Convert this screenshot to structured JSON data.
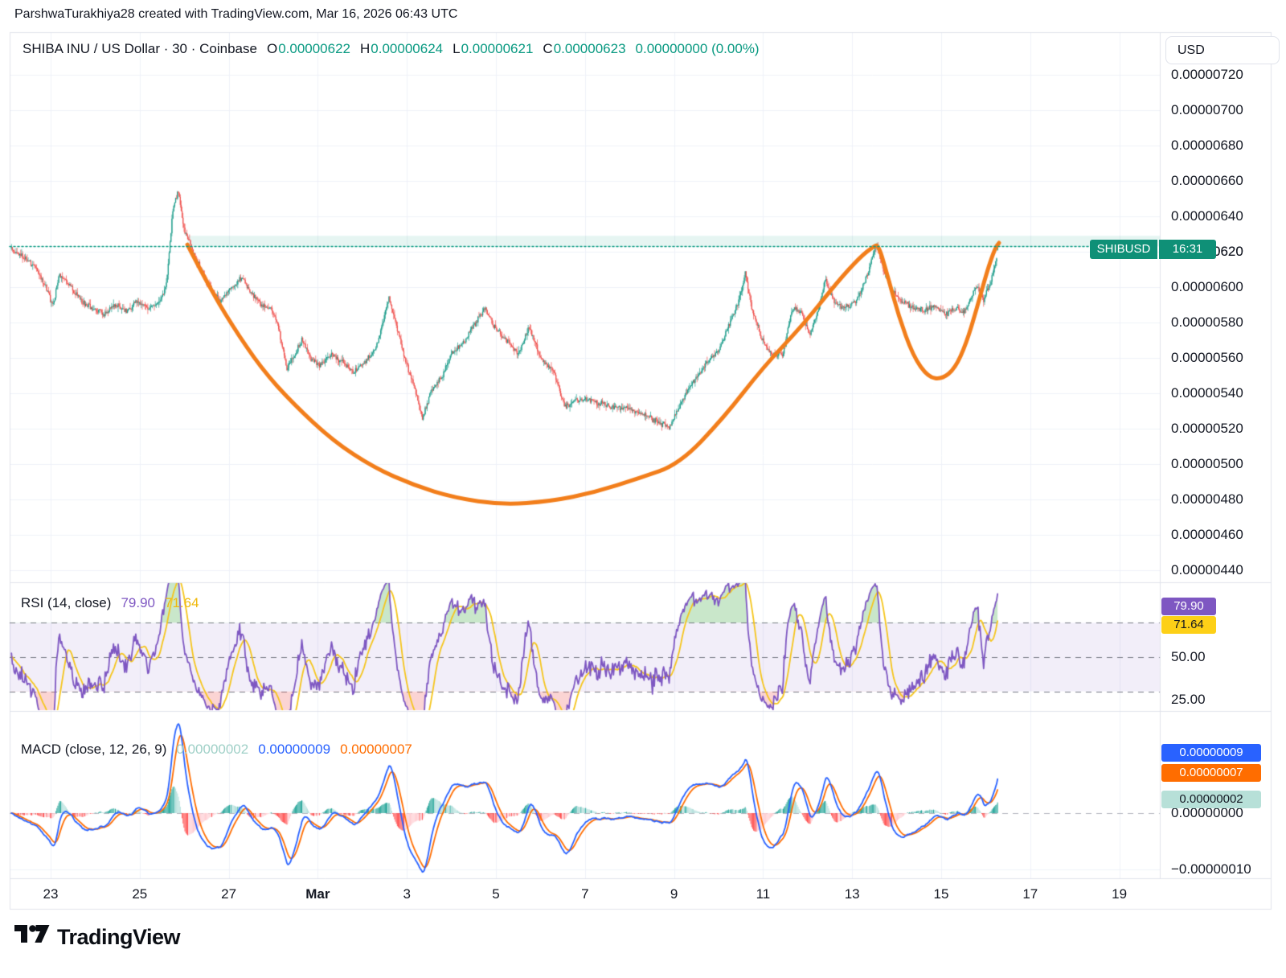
{
  "ui": {
    "header": "ParshwaTurakhiya28 created with TradingView.com, Mar 16, 2026 06:43 UTC",
    "currency_button": "USD",
    "logo_text": "TradingView",
    "price_flag": {
      "symbol": "SHIBUSD",
      "countdown": "16:31",
      "price": "0.00000620"
    }
  },
  "chart_data": [
    {
      "type": "candlestick",
      "pane": "price",
      "title": "SHIBA INU / US Dollar · 30 · Coinbase",
      "legend": {
        "o_label": "O",
        "o": "0.00000622",
        "h_label": "H",
        "h": "0.00000624",
        "l_label": "L",
        "l": "0.00000621",
        "c_label": "C",
        "c": "0.00000623",
        "change": "0.00000000 (0.00%)"
      },
      "y_ticks": [
        {
          "label": "0.00000720",
          "v": 720
        },
        {
          "label": "0.00000700",
          "v": 700
        },
        {
          "label": "0.00000680",
          "v": 680
        },
        {
          "label": "0.00000660",
          "v": 660
        },
        {
          "label": "0.00000640",
          "v": 640
        },
        {
          "label": "0.00000620",
          "v": 620
        },
        {
          "label": "0.00000600",
          "v": 600
        },
        {
          "label": "0.00000580",
          "v": 580
        },
        {
          "label": "0.00000560",
          "v": 560
        },
        {
          "label": "0.00000540",
          "v": 540
        },
        {
          "label": "0.00000520",
          "v": 520
        },
        {
          "label": "0.00000500",
          "v": 500
        },
        {
          "label": "0.00000480",
          "v": 480
        },
        {
          "label": "0.00000460",
          "v": 460
        },
        {
          "label": "0.00000440",
          "v": 440
        }
      ],
      "x_ticks": [
        {
          "label": "23",
          "t": 0
        },
        {
          "label": "25",
          "t": 2
        },
        {
          "label": "27",
          "t": 4
        },
        {
          "label": "Mar",
          "t": 6,
          "bold": true
        },
        {
          "label": "3",
          "t": 8
        },
        {
          "label": "5",
          "t": 10
        },
        {
          "label": "7",
          "t": 12
        },
        {
          "label": "9",
          "t": 14
        },
        {
          "label": "11",
          "t": 16
        },
        {
          "label": "13",
          "t": 18
        },
        {
          "label": "15",
          "t": 20
        },
        {
          "label": "17",
          "t": 22
        },
        {
          "label": "19",
          "t": 24
        }
      ],
      "bar_interval_days": 0.0208333,
      "t_first": -0.88,
      "t_last": 21.28,
      "last_price_e8": 623,
      "highlight_band_e8": [
        623,
        629
      ],
      "close_path": [
        [
          -0.9,
          622
        ],
        [
          -0.6,
          617
        ],
        [
          -0.35,
          611
        ],
        [
          -0.1,
          600
        ],
        [
          0.05,
          589
        ],
        [
          0.2,
          607
        ],
        [
          0.45,
          600
        ],
        [
          0.7,
          592
        ],
        [
          0.95,
          588
        ],
        [
          1.2,
          585
        ],
        [
          1.45,
          590
        ],
        [
          1.7,
          586
        ],
        [
          1.95,
          592
        ],
        [
          2.2,
          588
        ],
        [
          2.45,
          592
        ],
        [
          2.6,
          601
        ],
        [
          2.75,
          645
        ],
        [
          2.87,
          654
        ],
        [
          3.0,
          632
        ],
        [
          3.15,
          624
        ],
        [
          3.3,
          614
        ],
        [
          3.5,
          604
        ],
        [
          3.65,
          597
        ],
        [
          3.8,
          592
        ],
        [
          4.0,
          598
        ],
        [
          4.3,
          606
        ],
        [
          4.5,
          596
        ],
        [
          4.75,
          590
        ],
        [
          4.95,
          588
        ],
        [
          5.1,
          579
        ],
        [
          5.3,
          554
        ],
        [
          5.5,
          563
        ],
        [
          5.65,
          570
        ],
        [
          5.85,
          559
        ],
        [
          6.05,
          556
        ],
        [
          6.3,
          562
        ],
        [
          6.55,
          558
        ],
        [
          6.8,
          552
        ],
        [
          7.0,
          556
        ],
        [
          7.3,
          565
        ],
        [
          7.6,
          594
        ],
        [
          7.75,
          580
        ],
        [
          7.95,
          560
        ],
        [
          8.15,
          545
        ],
        [
          8.35,
          526
        ],
        [
          8.55,
          542
        ],
        [
          8.8,
          550
        ],
        [
          9.0,
          562
        ],
        [
          9.3,
          570
        ],
        [
          9.55,
          580
        ],
        [
          9.75,
          588
        ],
        [
          10.0,
          576
        ],
        [
          10.25,
          570
        ],
        [
          10.5,
          562
        ],
        [
          10.75,
          578
        ],
        [
          11.0,
          560
        ],
        [
          11.3,
          552
        ],
        [
          11.55,
          532
        ],
        [
          11.8,
          536
        ],
        [
          12.1,
          536
        ],
        [
          12.4,
          534
        ],
        [
          12.7,
          532
        ],
        [
          13.0,
          531
        ],
        [
          13.3,
          528
        ],
        [
          13.6,
          524
        ],
        [
          13.9,
          521
        ],
        [
          14.1,
          532
        ],
        [
          14.35,
          544
        ],
        [
          14.6,
          552
        ],
        [
          14.8,
          560
        ],
        [
          15.0,
          564
        ],
        [
          15.2,
          576
        ],
        [
          15.45,
          592
        ],
        [
          15.6,
          608
        ],
        [
          15.75,
          588
        ],
        [
          15.95,
          572
        ],
        [
          16.2,
          562
        ],
        [
          16.45,
          562
        ],
        [
          16.65,
          588
        ],
        [
          16.85,
          586
        ],
        [
          17.05,
          572
        ],
        [
          17.25,
          588
        ],
        [
          17.4,
          604
        ],
        [
          17.6,
          592
        ],
        [
          17.75,
          588
        ],
        [
          17.95,
          590
        ],
        [
          18.1,
          592
        ],
        [
          18.25,
          601
        ],
        [
          18.4,
          612
        ],
        [
          18.55,
          625
        ],
        [
          18.7,
          610
        ],
        [
          18.9,
          598
        ],
        [
          19.1,
          592
        ],
        [
          19.35,
          589
        ],
        [
          19.6,
          587
        ],
        [
          19.85,
          589
        ],
        [
          20.1,
          585
        ],
        [
          20.35,
          588
        ],
        [
          20.5,
          585
        ],
        [
          20.65,
          593
        ],
        [
          20.8,
          601
        ],
        [
          20.95,
          593
        ],
        [
          21.1,
          602
        ],
        [
          21.2,
          612
        ],
        [
          21.28,
          622
        ]
      ],
      "colors": {
        "up": "#1E9D8B",
        "down": "#EF5350",
        "grid": "#EFF2F8",
        "frame": "#E0E3EB",
        "band": "rgba(8,153,129,0.10)",
        "dotted": "#089981"
      },
      "drawing": {
        "name": "cup-and-handle",
        "color": "#F27E1B",
        "points": [
          [
            3.07,
            624
          ],
          [
            3.52,
            602
          ],
          [
            4.06,
            579
          ],
          [
            4.73,
            554
          ],
          [
            5.45,
            534
          ],
          [
            6.35,
            513
          ],
          [
            7.26,
            498
          ],
          [
            8.16,
            488
          ],
          [
            9.06,
            481
          ],
          [
            10.14,
            477
          ],
          [
            11.23,
            479
          ],
          [
            12.22,
            484
          ],
          [
            13.21,
            492
          ],
          [
            14.12,
            500
          ],
          [
            15.11,
            526
          ],
          [
            16.01,
            555
          ],
          [
            16.91,
            579
          ],
          [
            17.67,
            603
          ],
          [
            18.18,
            617
          ],
          [
            18.48,
            623
          ],
          [
            18.59,
            624
          ],
          [
            18.79,
            607
          ],
          [
            19.04,
            584
          ],
          [
            19.37,
            561
          ],
          [
            19.71,
            549
          ],
          [
            20.02,
            548
          ],
          [
            20.31,
            554
          ],
          [
            20.56,
            568
          ],
          [
            20.79,
            587
          ],
          [
            21.03,
            609
          ],
          [
            21.21,
            622
          ],
          [
            21.3,
            625
          ]
        ]
      }
    },
    {
      "type": "line",
      "pane": "rsi",
      "name": "RSI (14, close)",
      "period": 14,
      "source": "close",
      "display": {
        "current": "79.90",
        "ma": "71.64"
      },
      "current": 79.9,
      "ma_current": 71.64,
      "levels": {
        "overbought": 70,
        "middle": 50,
        "oversold": 30
      },
      "y_ticks": [
        {
          "label": "50.00",
          "v": 50
        },
        {
          "label": "25.00",
          "v": 25
        }
      ],
      "colors": {
        "rsi": "#7E57C2",
        "ma": "#F5C51C",
        "band": "rgba(126,87,194,0.10)",
        "level": "#787B86",
        "overbought_fill": "rgba(76,175,80,0.30)",
        "oversold_fill": "rgba(239,83,80,0.25)"
      }
    },
    {
      "type": "macd",
      "pane": "macd",
      "name": "MACD (close, 12, 26, 9)",
      "fast": 12,
      "slow": 26,
      "signal_period": 9,
      "source": "close",
      "display": {
        "histogram": "0.00000002",
        "macd": "0.00000009",
        "signal": "0.00000007"
      },
      "y_ticks": [
        {
          "label": "0.00000000",
          "v": 0
        },
        {
          "label": "−0.00000010",
          "v": -10
        }
      ],
      "colors": {
        "macd": "#2962FF",
        "signal": "#FF6D00",
        "hist_up": "#26A69A",
        "hist_up_fade": "#B2DFDB",
        "hist_down": "#FF5252",
        "hist_down_fade": "#FFCDD2",
        "zero": "#B2B5BE"
      }
    }
  ]
}
